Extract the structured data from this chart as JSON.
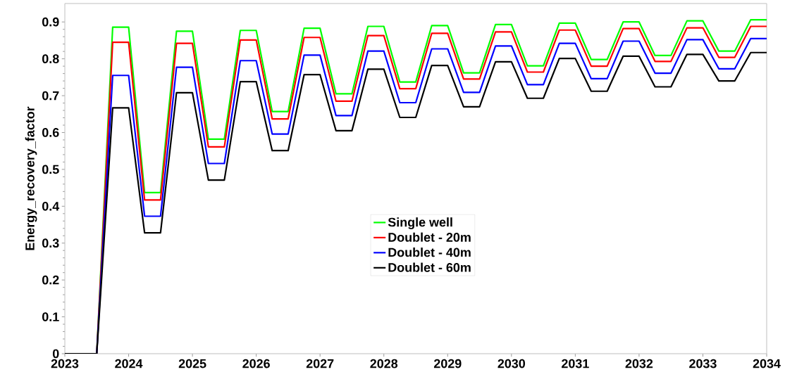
{
  "chart_data": {
    "type": "line",
    "ylabel": "Energy_recovery_factor",
    "x": [
      2023,
      2023.5,
      2023.75,
      2024,
      2024.25,
      2024.5,
      2024.75,
      2025,
      2025.25,
      2025.5,
      2025.75,
      2026,
      2026.25,
      2026.5,
      2026.75,
      2027,
      2027.25,
      2027.5,
      2027.75,
      2028,
      2028.25,
      2028.5,
      2028.75,
      2029,
      2029.25,
      2029.5,
      2029.75,
      2030,
      2030.25,
      2030.5,
      2030.75,
      2031,
      2031.25,
      2031.5,
      2031.75,
      2032,
      2032.25,
      2032.5,
      2032.75,
      2033,
      2033.25,
      2033.5,
      2033.75,
      2034
    ],
    "series": [
      {
        "name": "Single well",
        "color": "#00ff00",
        "values": [
          0,
          0,
          0.886,
          0.886,
          0.437,
          0.437,
          0.875,
          0.875,
          0.582,
          0.582,
          0.877,
          0.877,
          0.657,
          0.657,
          0.883,
          0.883,
          0.705,
          0.705,
          0.888,
          0.888,
          0.737,
          0.737,
          0.89,
          0.89,
          0.762,
          0.762,
          0.893,
          0.893,
          0.781,
          0.781,
          0.897,
          0.897,
          0.798,
          0.798,
          0.9,
          0.9,
          0.809,
          0.809,
          0.903,
          0.903,
          0.821,
          0.821,
          0.906,
          0.906
        ]
      },
      {
        "name": "Doublet - 20m",
        "color": "#ff0000",
        "values": [
          0,
          0,
          0.845,
          0.845,
          0.417,
          0.417,
          0.842,
          0.842,
          0.561,
          0.561,
          0.851,
          0.851,
          0.637,
          0.637,
          0.858,
          0.858,
          0.685,
          0.685,
          0.863,
          0.863,
          0.719,
          0.719,
          0.869,
          0.869,
          0.745,
          0.745,
          0.873,
          0.873,
          0.764,
          0.764,
          0.878,
          0.878,
          0.78,
          0.78,
          0.882,
          0.882,
          0.793,
          0.793,
          0.884,
          0.884,
          0.804,
          0.804,
          0.888,
          0.888
        ]
      },
      {
        "name": "Doublet - 40m",
        "color": "#0000ff",
        "values": [
          0,
          0,
          0.755,
          0.755,
          0.373,
          0.373,
          0.777,
          0.777,
          0.516,
          0.516,
          0.795,
          0.795,
          0.596,
          0.596,
          0.81,
          0.81,
          0.646,
          0.646,
          0.821,
          0.821,
          0.681,
          0.681,
          0.827,
          0.827,
          0.709,
          0.709,
          0.835,
          0.835,
          0.73,
          0.73,
          0.842,
          0.842,
          0.746,
          0.746,
          0.848,
          0.848,
          0.761,
          0.761,
          0.852,
          0.852,
          0.773,
          0.773,
          0.855,
          0.855
        ]
      },
      {
        "name": "Doublet - 60m",
        "color": "#000000",
        "values": [
          0,
          0,
          0.667,
          0.667,
          0.328,
          0.328,
          0.708,
          0.708,
          0.471,
          0.471,
          0.738,
          0.738,
          0.551,
          0.551,
          0.757,
          0.757,
          0.605,
          0.605,
          0.772,
          0.772,
          0.641,
          0.641,
          0.782,
          0.782,
          0.67,
          0.67,
          0.792,
          0.792,
          0.693,
          0.693,
          0.801,
          0.801,
          0.712,
          0.712,
          0.807,
          0.807,
          0.724,
          0.724,
          0.812,
          0.812,
          0.74,
          0.74,
          0.817,
          0.817
        ]
      }
    ],
    "xlim": [
      2023,
      2034
    ],
    "xticks": [
      2023,
      2024,
      2025,
      2026,
      2027,
      2028,
      2029,
      2030,
      2031,
      2032,
      2033,
      2034
    ],
    "ylim": [
      0,
      0.95
    ],
    "yticks": [
      0,
      0.1,
      0.2,
      0.3,
      0.4,
      0.5,
      0.6,
      0.7,
      0.8,
      0.9
    ],
    "legend": "center",
    "line_style": "solid",
    "marker": "none"
  }
}
